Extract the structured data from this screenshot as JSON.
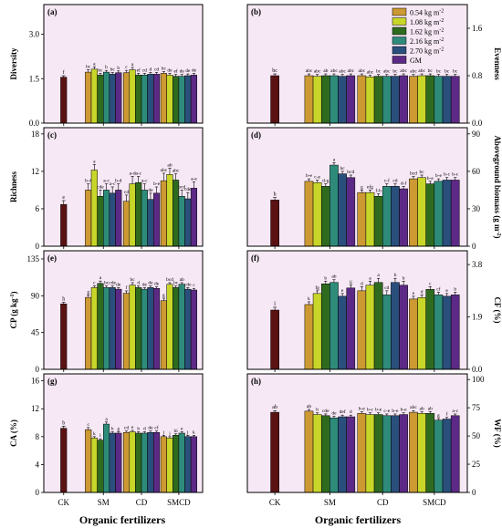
{
  "figure": {
    "colors": {
      "CK": "#5a1212",
      "0.54": "#cc9933",
      "1.08": "#c8d62a",
      "1.62": "#2f6b1f",
      "2.16": "#2e8b7a",
      "2.70": "#2a4f7c",
      "GM": "#5c2a86",
      "background": "#f7e8f5"
    },
    "x_labels": [
      "CK",
      "SM",
      "CD",
      "SMCD"
    ],
    "x_title": "Organic fertilizers",
    "legend": [
      {
        "key": "0.54",
        "text": "0.54 kg m",
        "sup": "-2"
      },
      {
        "key": "1.08",
        "text": "1.08 kg m",
        "sup": "-2"
      },
      {
        "key": "1.62",
        "text": "1.62 kg m",
        "sup": "-2"
      },
      {
        "key": "2.16",
        "text": "2.16 kg m",
        "sup": "-2"
      },
      {
        "key": "2.70",
        "text": "2.70 kg m",
        "sup": "-2"
      },
      {
        "key": "GM",
        "text": "GM",
        "sup": ""
      }
    ],
    "series_keys": [
      "0.54",
      "1.08",
      "1.62",
      "2.16",
      "2.70",
      "GM"
    ]
  },
  "chart_data": [
    {
      "panel": "(a)",
      "type": "bar",
      "ylabel": "Diversity",
      "axis_side": "left",
      "ylim": [
        0,
        4.0
      ],
      "ticks": [
        0.0,
        1.5,
        3.0
      ],
      "tick_labels": [
        "0.0",
        "1.5",
        "3.0"
      ],
      "ck": {
        "value": 1.55,
        "err": 0.05,
        "letter": "f"
      },
      "groups": {
        "SM": {
          "values": [
            1.72,
            1.82,
            1.62,
            1.72,
            1.65,
            1.7
          ],
          "errors": [
            0.08,
            0.08,
            0.06,
            0.06,
            0.06,
            0.06
          ],
          "letters": [
            "bc",
            "a",
            "bc",
            "b",
            "bc",
            "b"
          ]
        },
        "CD": {
          "values": [
            1.7,
            1.8,
            1.62,
            1.62,
            1.65,
            1.65
          ],
          "errors": [
            0.08,
            0.08,
            0.06,
            0.06,
            0.06,
            0.06
          ],
          "letters": [
            "c",
            "a",
            "ef",
            "cd",
            "d",
            "cd"
          ]
        },
        "SMCD": {
          "values": [
            1.68,
            1.62,
            1.58,
            1.58,
            1.6,
            1.62
          ],
          "errors": [
            0.06,
            0.06,
            0.06,
            0.06,
            0.06,
            0.06
          ],
          "letters": [
            "bc",
            "de",
            "ef",
            "de",
            "de",
            "de"
          ]
        }
      }
    },
    {
      "panel": "(b)",
      "type": "bar",
      "ylabel": "Evenness",
      "axis_side": "right",
      "ylim": [
        0,
        2.0
      ],
      "ticks": [
        0.0,
        0.8,
        1.6
      ],
      "tick_labels": [
        "0.0",
        "0.8",
        "1.6"
      ],
      "ck": {
        "value": 0.8,
        "err": 0.03,
        "letter": "bc"
      },
      "groups": {
        "SM": {
          "values": [
            0.8,
            0.79,
            0.8,
            0.8,
            0.79,
            0.8
          ],
          "errors": [
            0.03,
            0.03,
            0.03,
            0.03,
            0.03,
            0.03
          ],
          "letters": [
            "abc",
            "abc",
            "ab",
            "abc",
            "abc",
            "abc"
          ]
        },
        "CD": {
          "values": [
            0.8,
            0.78,
            0.79,
            0.79,
            0.79,
            0.8
          ],
          "errors": [
            0.03,
            0.03,
            0.03,
            0.03,
            0.03,
            0.03
          ],
          "letters": [
            "abc",
            "abc",
            "bc",
            "abc",
            "bc",
            "abc"
          ]
        },
        "SMCD": {
          "values": [
            0.79,
            0.8,
            0.8,
            0.79,
            0.79,
            0.79
          ],
          "errors": [
            0.03,
            0.03,
            0.03,
            0.03,
            0.03,
            0.03
          ],
          "letters": [
            "abc",
            "abc",
            "bc",
            "bc",
            "bc",
            "bc"
          ]
        }
      }
    },
    {
      "panel": "(c)",
      "type": "bar",
      "ylabel": "Richness",
      "axis_side": "left",
      "ylim": [
        0,
        19
      ],
      "ticks": [
        0,
        6,
        12,
        18
      ],
      "tick_labels": [
        "0",
        "6",
        "12",
        "18"
      ],
      "ck": {
        "value": 6.7,
        "err": 0.6,
        "letter": "e"
      },
      "groups": {
        "SM": {
          "values": [
            9.0,
            12.2,
            8.0,
            9.0,
            8.5,
            9.0
          ],
          "errors": [
            1.0,
            0.9,
            1.0,
            1.0,
            1.0,
            1.0
          ],
          "letters": [
            "b-d",
            "a",
            "cde",
            "a-c",
            "a-c",
            "b-d"
          ]
        },
        "CD": {
          "values": [
            7.2,
            10.0,
            10.2,
            9.0,
            7.5,
            8.5
          ],
          "errors": [
            1.0,
            1.2,
            1.0,
            1.0,
            1.0,
            1.0
          ],
          "letters": [
            "cd",
            "a-d",
            "a-c",
            "a-c",
            "de",
            "b-e"
          ]
        },
        "SMCD": {
          "values": [
            10.5,
            11.5,
            10.6,
            8.0,
            7.6,
            9.3
          ],
          "errors": [
            1.2,
            1.0,
            1.0,
            1.0,
            1.0,
            1.0
          ],
          "letters": [
            "abc",
            "ab",
            "abc",
            "bcd",
            "cde",
            "a-e"
          ]
        }
      }
    },
    {
      "panel": "(d)",
      "type": "bar",
      "ylabel": "Aboveground biomass (g m",
      "ylabel_sup": "-2",
      "ylabel_tail": ")",
      "axis_side": "right",
      "ylim": [
        0,
        95
      ],
      "ticks": [
        0,
        30,
        60,
        90
      ],
      "tick_labels": [
        "0",
        "30",
        "60",
        "90"
      ],
      "ck": {
        "value": 37,
        "err": 2,
        "letter": "h"
      },
      "groups": {
        "SM": {
          "values": [
            52,
            51,
            48,
            65,
            58,
            55
          ],
          "errors": [
            2,
            2,
            2,
            2,
            2,
            2
          ],
          "letters": [
            "b-e",
            "c-e",
            "d-g",
            "a",
            "bc",
            "bcd"
          ]
        },
        "CD": {
          "values": [
            43,
            43,
            40,
            48,
            48,
            46
          ],
          "errors": [
            2,
            2,
            2,
            2,
            2,
            2
          ],
          "letters": [
            "g",
            "efg",
            "f-h",
            "c-f",
            "cd",
            "d-f"
          ]
        },
        "SMCD": {
          "values": [
            54,
            55,
            50,
            52,
            53,
            53
          ],
          "errors": [
            2,
            2,
            2,
            2,
            2,
            2
          ],
          "letters": [
            "bcd",
            "bc",
            "b-e",
            "b-e",
            "b-c",
            "b-c"
          ]
        }
      }
    },
    {
      "panel": "(e)",
      "type": "bar",
      "ylabel": "CP (g kg",
      "ylabel_sup": "-1",
      "ylabel_tail": ")",
      "axis_side": "left",
      "ylim": [
        0,
        145
      ],
      "ticks": [
        0,
        45,
        90,
        135
      ],
      "tick_labels": [
        "0",
        "45",
        "90",
        "135"
      ],
      "ck": {
        "value": 80,
        "err": 2,
        "letter": "h"
      },
      "groups": {
        "SM": {
          "values": [
            88,
            100,
            105,
            100,
            100,
            98
          ],
          "errors": [
            3,
            2,
            3,
            2,
            2,
            2
          ],
          "letters": [
            "g",
            "c",
            "a",
            "bc",
            "cde",
            "de"
          ]
        },
        "CD": {
          "values": [
            93,
            103,
            100,
            98,
            100,
            99
          ],
          "errors": [
            3,
            3,
            2,
            2,
            2,
            2
          ],
          "letters": [
            "f",
            "bc",
            "d",
            "de",
            "de",
            "de"
          ]
        },
        "SMCD": {
          "values": [
            84,
            104,
            100,
            104,
            98,
            97
          ],
          "errors": [
            3,
            2,
            2,
            2,
            2,
            2
          ],
          "letters": [
            "g",
            "bcd",
            "bc",
            "ab",
            "cde",
            "c"
          ]
        }
      }
    },
    {
      "panel": "(f)",
      "type": "bar",
      "ylabel": "CF (%)",
      "axis_side": "right",
      "ylim": [
        0,
        4.3
      ],
      "ticks": [
        0.0,
        1.9,
        3.8
      ],
      "tick_labels": [
        "0.0",
        "1.9",
        "3.8"
      ],
      "ck": {
        "value": 2.15,
        "err": 0.1,
        "letter": "l"
      },
      "groups": {
        "SM": {
          "values": [
            2.35,
            2.75,
            3.1,
            3.15,
            2.65,
            2.95
          ],
          "errors": [
            0.1,
            0.1,
            0.1,
            0.1,
            0.1,
            0.1
          ],
          "letters": [
            "k",
            "fg",
            "b",
            "ab",
            "e",
            "ij"
          ]
        },
        "CD": {
          "values": [
            2.85,
            3.05,
            3.15,
            2.7,
            3.15,
            3.05
          ],
          "errors": [
            0.15,
            0.15,
            0.15,
            0.15,
            0.15,
            0.15
          ],
          "letters": [
            "d",
            "a",
            "a",
            "cd",
            "b",
            "b"
          ]
        },
        "SMCD": {
          "values": [
            2.55,
            2.6,
            2.9,
            2.7,
            2.65,
            2.7
          ],
          "errors": [
            0.1,
            0.1,
            0.1,
            0.1,
            0.1,
            0.1
          ],
          "letters": [
            "e",
            "d",
            "c",
            "cf",
            "e",
            "b"
          ]
        }
      }
    },
    {
      "panel": "(g)",
      "type": "bar",
      "ylabel": "CA (%)",
      "axis_side": "left",
      "ylim": [
        0,
        17
      ],
      "ticks": [
        0,
        4,
        8,
        12,
        16
      ],
      "tick_labels": [
        "0",
        "4",
        "8",
        "12",
        "16"
      ],
      "ck": {
        "value": 9.2,
        "err": 0.3,
        "letter": "b"
      },
      "groups": {
        "SM": {
          "values": [
            9.0,
            7.8,
            7.5,
            9.8,
            8.5,
            8.5
          ],
          "errors": [
            0.3,
            0.2,
            0.2,
            0.3,
            0.2,
            0.2
          ],
          "letters": [
            "c",
            "k",
            "l",
            "a",
            "h",
            "g"
          ]
        },
        "CD": {
          "values": [
            8.6,
            8.7,
            8.5,
            8.5,
            8.6,
            8.6
          ],
          "errors": [
            0.2,
            0.2,
            0.2,
            0.2,
            0.2,
            0.2
          ],
          "letters": [
            "cd",
            "e",
            "b",
            "d",
            "de",
            "cf"
          ]
        },
        "SMCD": {
          "values": [
            8.0,
            7.8,
            8.2,
            8.5,
            8.0,
            8.0
          ],
          "errors": [
            0.2,
            0.2,
            0.2,
            0.2,
            0.2,
            0.2
          ],
          "letters": [
            "j",
            "j",
            "hi",
            "e",
            "j",
            "k"
          ]
        }
      }
    },
    {
      "panel": "(h)",
      "type": "bar",
      "ylabel": "WF (%)",
      "axis_side": "right",
      "ylim": [
        0,
        105
      ],
      "ticks": [
        0,
        25,
        50,
        75,
        100
      ],
      "tick_labels": [
        "0",
        "25",
        "50",
        "75",
        "100"
      ],
      "ck": {
        "value": 71,
        "err": 1.5,
        "letter": "ab"
      },
      "groups": {
        "SM": {
          "values": [
            72,
            69,
            68,
            66,
            67,
            67
          ],
          "errors": [
            1.5,
            1.5,
            1.5,
            1.5,
            1.5,
            1.5
          ],
          "letters": [
            "ab",
            "b",
            "cde",
            "de",
            "def",
            "d"
          ]
        },
        "CD": {
          "values": [
            70,
            69,
            69,
            68,
            68,
            69
          ],
          "errors": [
            1.5,
            1.5,
            1.5,
            1.5,
            1.5,
            1.5
          ],
          "letters": [
            "b-e",
            "b-c",
            "b-e",
            "c-e",
            "b-e",
            "b-e"
          ]
        },
        "SMCD": {
          "values": [
            71,
            70,
            70,
            64,
            65,
            68
          ],
          "errors": [
            1.5,
            1.5,
            1.5,
            1.5,
            1.5,
            1.5
          ],
          "letters": [
            "abc",
            "ab",
            "ab",
            "g",
            "f",
            "a-c"
          ]
        }
      }
    }
  ]
}
